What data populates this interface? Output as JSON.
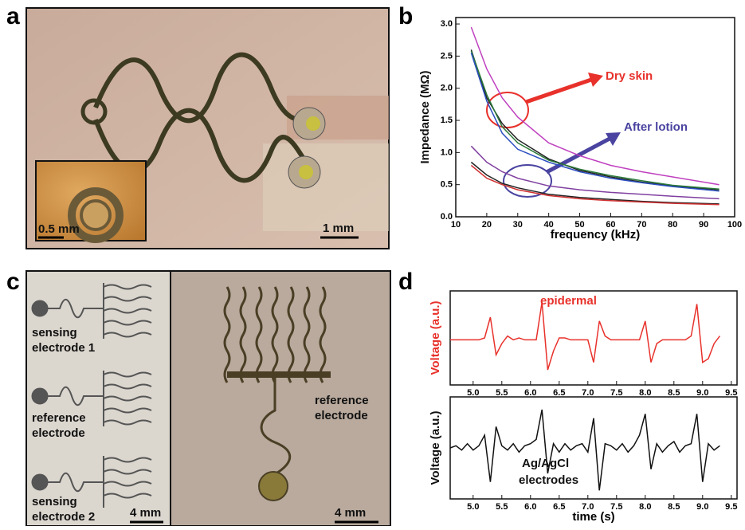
{
  "panel_labels": [
    "a",
    "b",
    "c",
    "d"
  ],
  "panel_a": {
    "inset_scale": "0.5 mm",
    "scale": "1 mm"
  },
  "panel_c": {
    "labels": [
      [
        "sensing",
        "electrode 1"
      ],
      [
        "reference",
        "electrode"
      ],
      [
        "sensing",
        "electrode 2"
      ],
      [
        "reference",
        "electrode"
      ]
    ],
    "scale_left": "4 mm",
    "scale_right": "4 mm"
  },
  "chart_data": [
    {
      "type": "line",
      "xlabel": "frequency (kHz)",
      "ylabel": "Impedance (MΩ)",
      "x": [
        15,
        20,
        25,
        30,
        40,
        50,
        60,
        70,
        80,
        95
      ],
      "series": [
        {
          "color": "#c040c0",
          "values": [
            2.95,
            2.3,
            1.85,
            1.55,
            1.15,
            0.95,
            0.8,
            0.7,
            0.62,
            0.5
          ]
        },
        {
          "color": "#222222",
          "values": [
            2.6,
            1.85,
            1.45,
            1.2,
            0.9,
            0.72,
            0.62,
            0.54,
            0.48,
            0.42
          ]
        },
        {
          "color": "#2a7a3a",
          "values": [
            2.58,
            1.9,
            1.4,
            1.15,
            0.88,
            0.74,
            0.64,
            0.56,
            0.49,
            0.43
          ]
        },
        {
          "color": "#2b4fc0",
          "values": [
            2.55,
            1.8,
            1.3,
            1.05,
            0.85,
            0.7,
            0.6,
            0.53,
            0.47,
            0.4
          ]
        },
        {
          "color": "#8040a0",
          "values": [
            1.1,
            0.85,
            0.7,
            0.6,
            0.48,
            0.42,
            0.38,
            0.35,
            0.32,
            0.28
          ]
        },
        {
          "color": "#222222",
          "values": [
            0.85,
            0.65,
            0.52,
            0.45,
            0.35,
            0.3,
            0.27,
            0.24,
            0.22,
            0.2
          ]
        },
        {
          "color": "#d03030",
          "values": [
            0.8,
            0.6,
            0.5,
            0.42,
            0.33,
            0.28,
            0.25,
            0.23,
            0.21,
            0.19
          ]
        }
      ],
      "xlim": [
        10,
        100
      ],
      "xticks": [
        10,
        20,
        30,
        40,
        50,
        60,
        70,
        80,
        90,
        100
      ],
      "ylim": [
        0,
        3.1
      ],
      "yticks": [
        {
          "value": 0,
          "label": "0.0"
        },
        0.5,
        {
          "value": 1,
          "label": "1.0"
        },
        1.5,
        {
          "value": 2,
          "label": "2.0"
        },
        2.5,
        {
          "value": 3,
          "label": "3.0"
        }
      ],
      "annotations": [
        {
          "text": "Dry skin",
          "color": "#e8312b"
        },
        {
          "text": "After lotion",
          "color": "#4a44a0"
        }
      ]
    },
    {
      "type": "line",
      "ylabel": "Voltage (a.u.)",
      "ylabel_color": "#e8312b",
      "x": [
        4.6,
        4.7,
        4.8,
        4.9,
        5.0,
        5.1,
        5.2,
        5.3,
        5.4,
        5.5,
        5.6,
        5.7,
        5.8,
        5.9,
        6.0,
        6.1,
        6.2,
        6.3,
        6.4,
        6.5,
        6.6,
        6.7,
        6.8,
        6.9,
        7.0,
        7.1,
        7.2,
        7.3,
        7.4,
        7.5,
        7.6,
        7.7,
        7.8,
        7.9,
        8.0,
        8.1,
        8.2,
        8.3,
        8.4,
        8.5,
        8.6,
        8.7,
        8.8,
        8.9,
        9.0,
        9.1,
        9.2,
        9.3
      ],
      "series": [
        {
          "color": "#e8312b",
          "values": [
            0,
            0,
            0,
            0,
            0,
            0,
            0.05,
            0.6,
            -0.4,
            -0.1,
            0.1,
            0,
            0.05,
            0,
            0,
            0,
            1.0,
            -0.8,
            -0.3,
            0.05,
            0.05,
            0,
            0,
            0,
            0,
            -0.6,
            0.5,
            0.1,
            0,
            0,
            0,
            0,
            0,
            0,
            0.5,
            -0.6,
            -0.1,
            0,
            0,
            0,
            0,
            0,
            0.1,
            0.95,
            -0.6,
            -0.5,
            -0.1,
            0.1
          ]
        }
      ],
      "xlim": [
        4.6,
        9.6
      ],
      "xticks": [
        {
          "value": 5,
          "label": "5.0"
        },
        5.5,
        {
          "value": 6,
          "label": "6.0"
        },
        6.5,
        {
          "value": 7,
          "label": "7.0"
        },
        7.5,
        {
          "value": 8,
          "label": "8.0"
        },
        8.5,
        {
          "value": 9,
          "label": "9.0"
        },
        9.5
      ],
      "ylim": [
        -1.2,
        1.3
      ],
      "annotations": [
        {
          "text": "epidermal",
          "color": "#e8312b"
        }
      ]
    },
    {
      "type": "line",
      "xlabel": "time (s)",
      "ylabel": "Voltage (a.u.)",
      "ylabel_color": "#111111",
      "x": [
        4.6,
        4.7,
        4.8,
        4.9,
        5.0,
        5.1,
        5.2,
        5.3,
        5.4,
        5.5,
        5.6,
        5.7,
        5.8,
        5.9,
        6.0,
        6.1,
        6.2,
        6.3,
        6.4,
        6.5,
        6.6,
        6.7,
        6.8,
        6.9,
        7.0,
        7.1,
        7.2,
        7.3,
        7.4,
        7.5,
        7.6,
        7.7,
        7.8,
        7.9,
        8.0,
        8.1,
        8.2,
        8.3,
        8.4,
        8.5,
        8.6,
        8.7,
        8.8,
        8.9,
        9.0,
        9.1,
        9.2,
        9.3
      ],
      "series": [
        {
          "color": "#111111",
          "values": [
            0,
            0.05,
            -0.05,
            0.1,
            -0.05,
            0.05,
            0.3,
            -0.8,
            0.5,
            0.05,
            -0.05,
            0.1,
            -0.1,
            0.05,
            0.1,
            0.2,
            0.9,
            -0.6,
            0.1,
            -0.1,
            0.1,
            -0.05,
            0.05,
            0.1,
            -0.1,
            0.7,
            -1.0,
            0.1,
            0.05,
            -0.05,
            0.1,
            -0.1,
            0.05,
            0.3,
            0.8,
            -0.5,
            0.1,
            -0.1,
            0.05,
            0.15,
            -0.1,
            0.05,
            0.1,
            0.8,
            -0.8,
            0.1,
            -0.05,
            0.05
          ]
        }
      ],
      "xlim": [
        4.6,
        9.6
      ],
      "xticks": [
        {
          "value": 5,
          "label": "5.0"
        },
        5.5,
        {
          "value": 6,
          "label": "6.0"
        },
        6.5,
        {
          "value": 7,
          "label": "7.0"
        },
        7.5,
        {
          "value": 8,
          "label": "8.0"
        },
        8.5,
        {
          "value": 9,
          "label": "9.0"
        },
        9.5
      ],
      "ylim": [
        -1.2,
        1.2
      ],
      "annotations": [
        {
          "text": "Ag/AgCl",
          "color": "#111111"
        },
        {
          "text": "electrodes",
          "color": "#111111"
        }
      ]
    }
  ]
}
